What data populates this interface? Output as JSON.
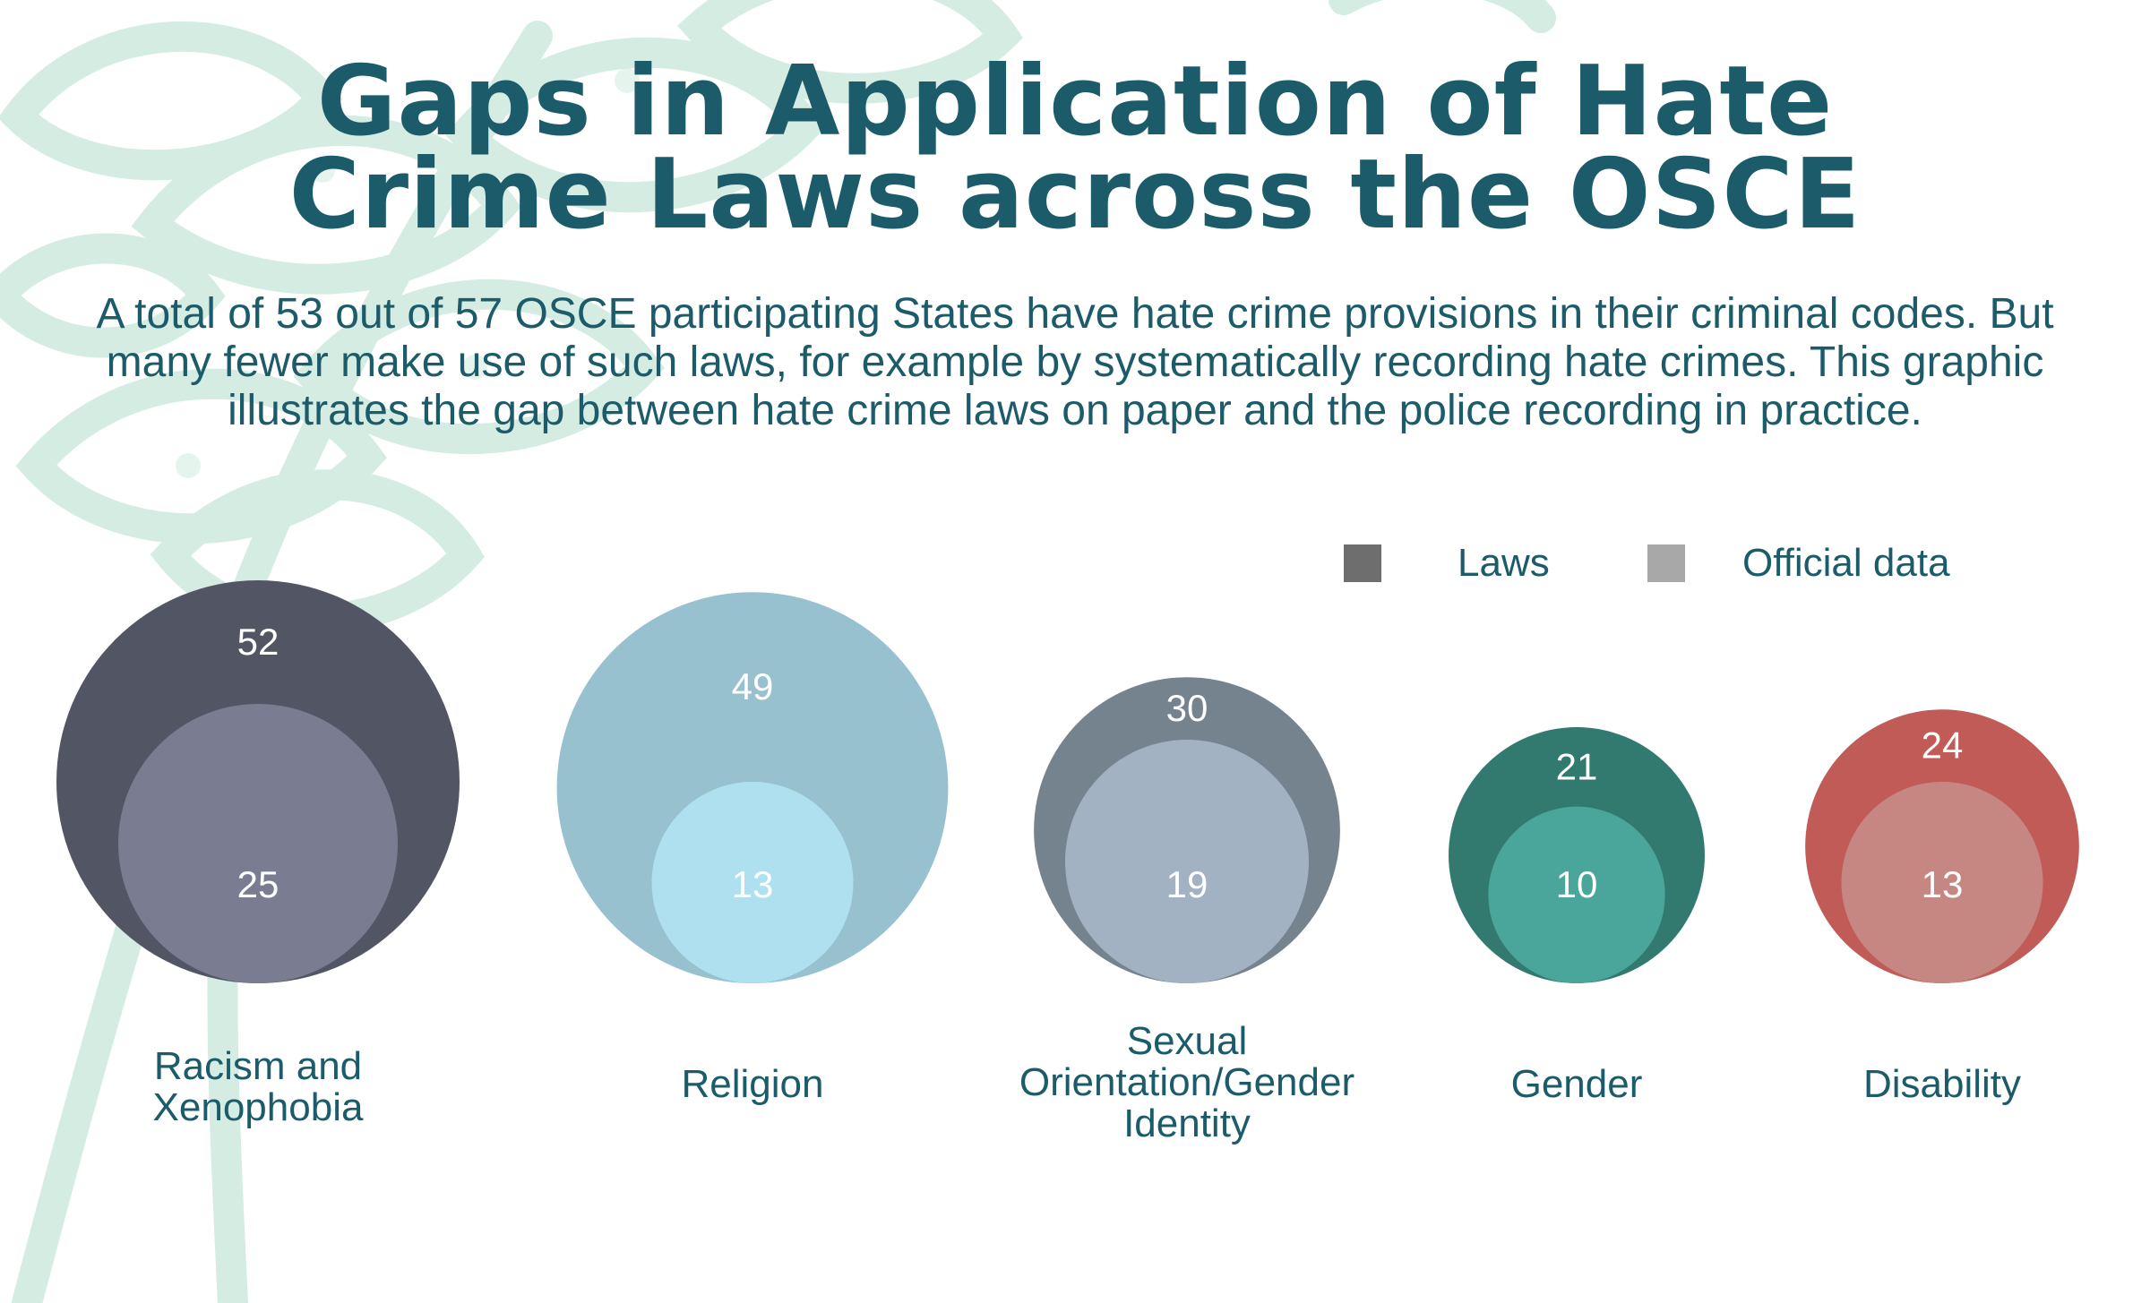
{
  "title_lines": [
    "Gaps in Application of Hate",
    "Crime Laws across the OSCE"
  ],
  "subtitle": "A total of 53 out of 57 OSCE participating States have hate crime provisions in their criminal codes. But many fewer make use of such laws, for example by systematically recording hate crimes. This graphic illustrates the gap between hate crime laws on paper and the police recording in practice.",
  "colors": {
    "title": "#1c5b6a",
    "background_motif": "#d5ece3",
    "legend_laws": "#6e6e6e",
    "legend_official": "#a8a8a8"
  },
  "legend": {
    "laws_label": "Laws",
    "official_label": "Official data"
  },
  "chart_data": {
    "type": "nested-bubble",
    "title": "Gaps in Application of Hate Crime Laws across the OSCE",
    "series": [
      {
        "name": "Laws"
      },
      {
        "name": "Official data"
      }
    ],
    "categories": [
      {
        "label": "Racism and Xenophobia",
        "laws": 52,
        "official_data": 25,
        "outer_color": "#525664",
        "inner_color": "#7a7d92"
      },
      {
        "label": "Religion",
        "laws": 49,
        "official_data": 13,
        "outer_color": "#98c1cf",
        "inner_color": "#aee0f0"
      },
      {
        "label": "Sexual Orientation/Gender Identity",
        "laws": 30,
        "official_data": 19,
        "outer_color": "#75838f",
        "inner_color": "#a2b2c3"
      },
      {
        "label": "Gender",
        "laws": 21,
        "official_data": 10,
        "outer_color": "#32796f",
        "inner_color": "#4aa59a"
      },
      {
        "label": "Disability",
        "laws": 24,
        "official_data": 13,
        "outer_color": "#c15b57",
        "inner_color": "#c68783"
      }
    ]
  }
}
